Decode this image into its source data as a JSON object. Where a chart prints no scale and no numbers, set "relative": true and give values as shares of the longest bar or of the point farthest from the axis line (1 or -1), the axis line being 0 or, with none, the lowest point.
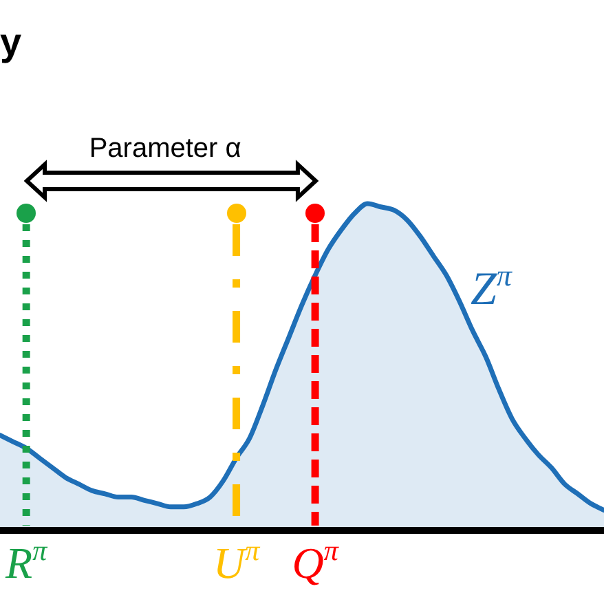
{
  "chart_data": {
    "type": "area",
    "title": "y",
    "annotations": [
      "Parameter α"
    ],
    "relative": true,
    "categories": [
      null,
      null,
      "R$^{π}$",
      null,
      null,
      null,
      null,
      null,
      null,
      null,
      null,
      null,
      null,
      null,
      null,
      null,
      null,
      null,
      "U$^{π}$",
      null,
      null,
      null,
      null,
      null,
      "Q$^{π}$",
      null,
      null,
      null,
      null,
      null,
      null,
      null,
      null,
      null,
      null,
      null,
      null,
      null,
      null,
      null,
      null,
      null,
      null,
      null,
      null,
      null,
      null
    ],
    "series": [
      {
        "name": "Z$^{π}$",
        "color": "#1f6fb7",
        "values": [
          0.29,
          0.27,
          0.25,
          0.22,
          0.19,
          0.16,
          0.14,
          0.12,
          0.11,
          0.1,
          0.1,
          0.09,
          0.08,
          0.07,
          0.07,
          0.08,
          0.1,
          0.15,
          0.22,
          0.28,
          0.38,
          0.49,
          0.59,
          0.69,
          0.78,
          0.86,
          0.92,
          0.97,
          1.0,
          0.99,
          0.98,
          0.95,
          0.9,
          0.84,
          0.78,
          0.7,
          0.61,
          0.53,
          0.43,
          0.34,
          0.28,
          0.23,
          0.19,
          0.14,
          0.11,
          0.08,
          0.06
        ]
      }
    ],
    "ref_lines": [
      {
        "axis": "x",
        "value": "R$^{π}$",
        "color": "#1aa14a",
        "line_style": "dotted"
      },
      {
        "axis": "x",
        "value": "U$^{π}$",
        "color": "#ffc000",
        "line_style": "dashdot"
      },
      {
        "axis": "x",
        "value": "Q$^{π}$",
        "color": "#ff0000",
        "line_style": "dashed"
      }
    ],
    "legend": false
  }
}
